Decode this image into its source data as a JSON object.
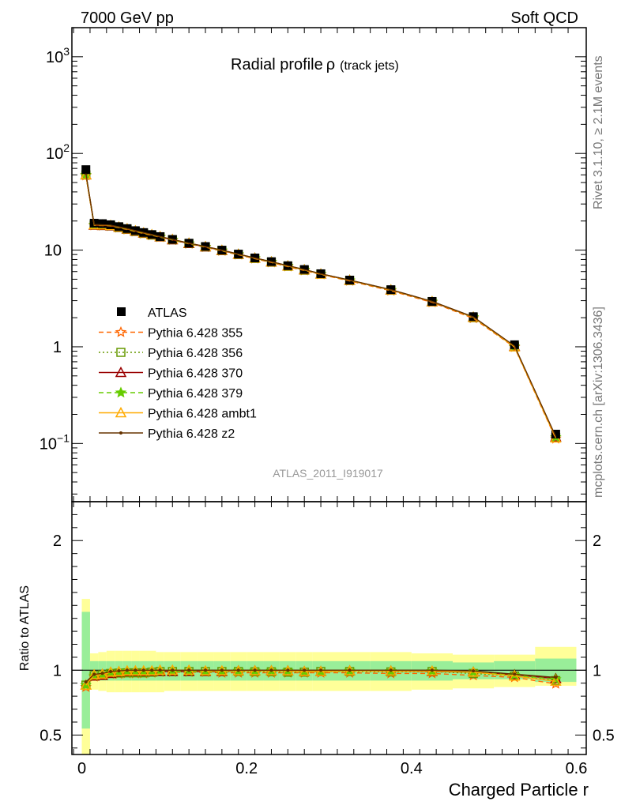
{
  "header": {
    "left": "7000 GeV pp",
    "right": "Soft QCD"
  },
  "side_labels": {
    "rivet": "Rivet 3.1.10, ≥ 2.1M events",
    "mcplots": "mcplots.cern.ch [arXiv:1306.3436]"
  },
  "plot_title": {
    "main": "Radial profile",
    "symbol": "ρ",
    "sub": "(track jets)"
  },
  "analysis_id": "ATLAS_2011_I919017",
  "colors": {
    "data": "#000000",
    "p355": "#ff6600",
    "p356": "#669900",
    "p370": "#990000",
    "p379": "#66cc00",
    "ambt1": "#ffaa00",
    "z2": "#663300",
    "band_inner": "#99ee99",
    "band_outer": "#ffff99"
  },
  "chart_data": [
    {
      "type": "line",
      "panel": "main",
      "log_y": true,
      "xlim": [
        -0.012,
        0.612
      ],
      "ylim": [
        0.025,
        2000
      ],
      "yticks": [
        {
          "value": 0.1,
          "base": "10",
          "exp": "−1"
        },
        {
          "value": 1,
          "base": "1",
          "exp": ""
        },
        {
          "value": 10,
          "base": "10",
          "exp": ""
        },
        {
          "value": 100,
          "base": "10",
          "exp": "2"
        },
        {
          "value": 1000,
          "base": "10",
          "exp": "3"
        }
      ],
      "x": [
        0.005,
        0.015,
        0.025,
        0.035,
        0.045,
        0.055,
        0.065,
        0.075,
        0.085,
        0.095,
        0.11,
        0.13,
        0.15,
        0.17,
        0.19,
        0.21,
        0.23,
        0.25,
        0.27,
        0.29,
        0.325,
        0.375,
        0.425,
        0.475,
        0.525,
        0.575
      ],
      "data": {
        "name": "ATLAS",
        "values": [
          68,
          19,
          18.8,
          18.3,
          17.5,
          16.7,
          15.9,
          15.2,
          14.5,
          13.8,
          12.9,
          11.8,
          10.9,
          10.0,
          9.1,
          8.3,
          7.6,
          6.9,
          6.3,
          5.7,
          4.9,
          3.9,
          2.95,
          2.05,
          1.05,
          0.125
        ]
      },
      "series": [
        {
          "name": "Pythia 6.428 355",
          "marker": "star",
          "line": "dashed",
          "values": [
            59,
            18.0,
            17.9,
            17.7,
            17.0,
            16.3,
            15.5,
            14.8,
            14.2,
            13.6,
            12.7,
            11.6,
            10.7,
            9.8,
            8.95,
            8.15,
            7.45,
            6.75,
            6.15,
            5.6,
            4.8,
            3.8,
            2.88,
            1.97,
            0.99,
            0.112
          ]
        },
        {
          "name": "Pythia 6.428 356",
          "marker": "square-open",
          "line": "dotted",
          "values": [
            60,
            18.2,
            18.0,
            17.8,
            17.1,
            16.4,
            15.6,
            14.9,
            14.3,
            13.7,
            12.8,
            11.7,
            10.8,
            9.9,
            9.0,
            8.2,
            7.5,
            6.8,
            6.2,
            5.65,
            4.85,
            3.85,
            2.92,
            2.0,
            1.0,
            0.115
          ]
        },
        {
          "name": "Pythia 6.428 370",
          "marker": "triangle-open",
          "line": "solid",
          "values": [
            60,
            18.1,
            18.0,
            17.8,
            17.2,
            16.5,
            15.7,
            15.0,
            14.4,
            13.7,
            12.8,
            11.7,
            10.8,
            9.9,
            9.05,
            8.25,
            7.55,
            6.85,
            6.25,
            5.65,
            4.87,
            3.87,
            2.92,
            2.02,
            1.01,
            0.117
          ]
        },
        {
          "name": "Pythia 6.428 379",
          "marker": "star",
          "line": "dashed",
          "values": [
            60,
            18.2,
            18.1,
            17.9,
            17.2,
            16.5,
            15.7,
            15.0,
            14.4,
            13.7,
            12.8,
            11.7,
            10.8,
            9.9,
            9.05,
            8.25,
            7.55,
            6.85,
            6.25,
            5.65,
            4.87,
            3.87,
            2.93,
            2.02,
            1.01,
            0.116
          ]
        },
        {
          "name": "Pythia 6.428 ambt1",
          "marker": "triangle-open",
          "line": "solid",
          "values": [
            60,
            18.3,
            18.2,
            18.0,
            17.3,
            16.6,
            15.8,
            15.1,
            14.4,
            13.8,
            12.9,
            11.8,
            10.85,
            9.95,
            9.05,
            8.25,
            7.55,
            6.85,
            6.25,
            5.65,
            4.87,
            3.87,
            2.93,
            2.02,
            1.0,
            0.114
          ]
        },
        {
          "name": "Pythia 6.428 z2",
          "marker": "dot",
          "line": "solid",
          "values": [
            62,
            18.4,
            18.3,
            18.1,
            17.4,
            16.7,
            15.9,
            15.2,
            14.5,
            13.8,
            12.9,
            11.8,
            10.9,
            10.0,
            9.1,
            8.3,
            7.6,
            6.9,
            6.3,
            5.7,
            4.9,
            3.9,
            2.95,
            2.04,
            1.02,
            0.118
          ]
        }
      ]
    },
    {
      "type": "line",
      "panel": "ratio",
      "ylabel": "Ratio to ATLAS",
      "xlabel": "Charged Particle r",
      "xlim": [
        -0.012,
        0.612
      ],
      "ylim": [
        0.35,
        2.3
      ],
      "yticks": [
        0.5,
        1,
        2
      ],
      "ytick_labels": [
        "0.5",
        "1",
        "2"
      ],
      "xticks": [
        0,
        0.2,
        0.4,
        0.6
      ],
      "xtick_labels": [
        "0",
        "0.2",
        "0.4",
        "0.6"
      ],
      "band_edges": [
        0,
        0.01,
        0.02,
        0.03,
        0.04,
        0.05,
        0.06,
        0.07,
        0.08,
        0.09,
        0.1,
        0.12,
        0.14,
        0.16,
        0.18,
        0.2,
        0.22,
        0.24,
        0.26,
        0.28,
        0.3,
        0.35,
        0.4,
        0.45,
        0.5,
        0.55,
        0.6
      ],
      "band_inner": [
        [
          0.55,
          1.45
        ],
        [
          0.92,
          1.07
        ],
        [
          0.92,
          1.07
        ],
        [
          0.92,
          1.07
        ],
        [
          0.92,
          1.07
        ],
        [
          0.92,
          1.07
        ],
        [
          0.92,
          1.07
        ],
        [
          0.92,
          1.07
        ],
        [
          0.92,
          1.07
        ],
        [
          0.92,
          1.07
        ],
        [
          0.92,
          1.07
        ],
        [
          0.92,
          1.07
        ],
        [
          0.92,
          1.07
        ],
        [
          0.92,
          1.07
        ],
        [
          0.92,
          1.07
        ],
        [
          0.92,
          1.07
        ],
        [
          0.92,
          1.07
        ],
        [
          0.92,
          1.07
        ],
        [
          0.92,
          1.07
        ],
        [
          0.92,
          1.07
        ],
        [
          0.92,
          1.07
        ],
        [
          0.92,
          1.07
        ],
        [
          0.92,
          1.07
        ],
        [
          0.93,
          1.06
        ],
        [
          0.93,
          1.07
        ],
        [
          0.91,
          1.09
        ]
      ],
      "band_outer": [
        [
          0.35,
          1.55
        ],
        [
          0.85,
          1.13
        ],
        [
          0.84,
          1.14
        ],
        [
          0.83,
          1.15
        ],
        [
          0.83,
          1.15
        ],
        [
          0.83,
          1.15
        ],
        [
          0.83,
          1.15
        ],
        [
          0.83,
          1.15
        ],
        [
          0.83,
          1.15
        ],
        [
          0.83,
          1.14
        ],
        [
          0.84,
          1.14
        ],
        [
          0.84,
          1.14
        ],
        [
          0.84,
          1.14
        ],
        [
          0.84,
          1.14
        ],
        [
          0.84,
          1.14
        ],
        [
          0.84,
          1.14
        ],
        [
          0.84,
          1.14
        ],
        [
          0.84,
          1.14
        ],
        [
          0.84,
          1.14
        ],
        [
          0.84,
          1.14
        ],
        [
          0.84,
          1.14
        ],
        [
          0.84,
          1.14
        ],
        [
          0.85,
          1.13
        ],
        [
          0.86,
          1.12
        ],
        [
          0.87,
          1.12
        ],
        [
          0.88,
          1.18
        ]
      ],
      "series": [
        {
          "name": "Pythia 6.428 355",
          "values": [
            0.87,
            0.95,
            0.96,
            0.97,
            0.97,
            0.975,
            0.975,
            0.975,
            0.98,
            0.985,
            0.985,
            0.985,
            0.985,
            0.98,
            0.98,
            0.98,
            0.98,
            0.98,
            0.98,
            0.98,
            0.98,
            0.975,
            0.975,
            0.96,
            0.945,
            0.895
          ]
        },
        {
          "name": "Pythia 6.428 356",
          "values": [
            0.885,
            0.958,
            0.965,
            0.975,
            0.978,
            0.98,
            0.98,
            0.98,
            0.985,
            0.99,
            0.99,
            0.99,
            0.99,
            0.99,
            0.99,
            0.988,
            0.988,
            0.985,
            0.985,
            0.99,
            0.99,
            0.987,
            0.99,
            0.975,
            0.955,
            0.92
          ]
        },
        {
          "name": "Pythia 6.428 370",
          "values": [
            0.885,
            0.955,
            0.96,
            0.975,
            0.985,
            0.99,
            0.99,
            0.99,
            0.99,
            0.99,
            0.99,
            0.99,
            0.99,
            0.99,
            0.995,
            0.995,
            0.995,
            0.995,
            0.99,
            0.99,
            0.995,
            0.993,
            0.99,
            0.985,
            0.965,
            0.935
          ]
        },
        {
          "name": "Pythia 6.428 379",
          "values": [
            0.885,
            0.958,
            0.965,
            0.98,
            0.985,
            0.99,
            0.99,
            0.99,
            0.99,
            0.99,
            0.99,
            0.99,
            0.99,
            0.99,
            0.995,
            0.995,
            0.995,
            0.995,
            0.99,
            0.99,
            0.995,
            0.993,
            0.993,
            0.985,
            0.962,
            0.93
          ]
        },
        {
          "name": "Pythia 6.428 ambt1",
          "values": [
            0.885,
            0.965,
            0.97,
            0.985,
            0.99,
            0.995,
            0.995,
            0.995,
            0.995,
            1.0,
            1.0,
            1.0,
            0.995,
            0.995,
            0.995,
            0.995,
            0.995,
            0.995,
            0.99,
            0.99,
            0.995,
            0.993,
            0.993,
            0.985,
            0.955,
            0.915
          ]
        },
        {
          "name": "Pythia 6.428 z2",
          "values": [
            0.91,
            0.968,
            0.975,
            0.99,
            0.995,
            1.0,
            1.0,
            1.0,
            1.0,
            1.0,
            1.0,
            1.0,
            1.0,
            1.0,
            1.0,
            1.0,
            1.0,
            1.0,
            1.0,
            1.0,
            1.0,
            1.0,
            1.0,
            0.995,
            0.97,
            0.945
          ]
        }
      ]
    }
  ]
}
